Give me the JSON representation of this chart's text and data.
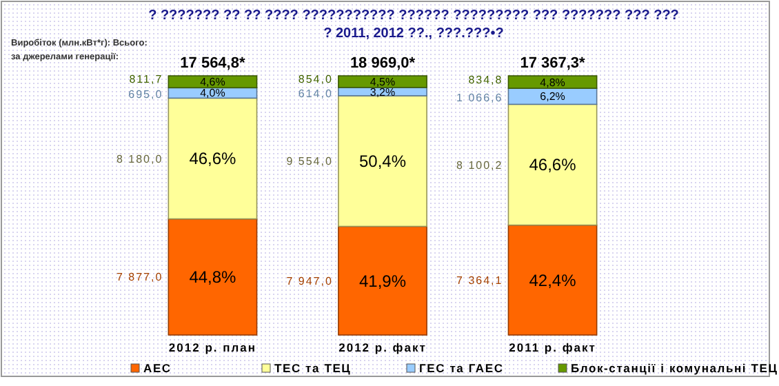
{
  "chart_data": {
    "type": "bar",
    "stacked": true,
    "title": "? ??????? ?? ?? ???? ??????????? ?????? ????????? ??? ??????? ??? ??? ? 2011, 2012 ??., ???.???•?",
    "categories": [
      "2012 р. план",
      "2012 р. факт",
      "2011 р. факт"
    ],
    "series": [
      {
        "name": "АЕС",
        "color": "#ff6600",
        "values": [
          44.8,
          41.9,
          42.4
        ],
        "value_labels": [
          "44,8%",
          "41,9%",
          "42,4%"
        ]
      },
      {
        "name": "ТЕС та ТЕЦ",
        "color": "#ffff99",
        "values": [
          46.6,
          50.4,
          46.6
        ],
        "value_labels": [
          "46,6%",
          "50,4%",
          "46,6%"
        ]
      },
      {
        "name": "ГЕС та ГАЕС",
        "color": "#99ccff",
        "values": [
          4.0,
          3.2,
          6.2
        ],
        "value_labels": [
          "4,0%",
          "3,2%",
          "6,2%"
        ]
      },
      {
        "name": "Блок-станції і комунальні ТЕЦ",
        "color": "#669900",
        "values": [
          4.6,
          4.5,
          4.8
        ],
        "value_labels": [
          "4,6%",
          "4,5%",
          "4,8%"
        ]
      }
    ],
    "ylim": [
      0,
      100
    ],
    "tick_labels": "x",
    "legend": "bottom",
    "grid": false,
    "annotations": [
      "Виробіток (млн.кВт*г): Всього:",
      "за джерелами генерації:",
      "17 564,8*",
      "18 969,0*",
      "17 367,3*",
      "7 877,0",
      "8 180,0",
      "695,0",
      "811,7",
      "7 947,0",
      "9 554,0",
      "614,0",
      "854,0",
      "7 364,1",
      "8 100,2",
      "1 066,6",
      "834,8"
    ]
  }
}
